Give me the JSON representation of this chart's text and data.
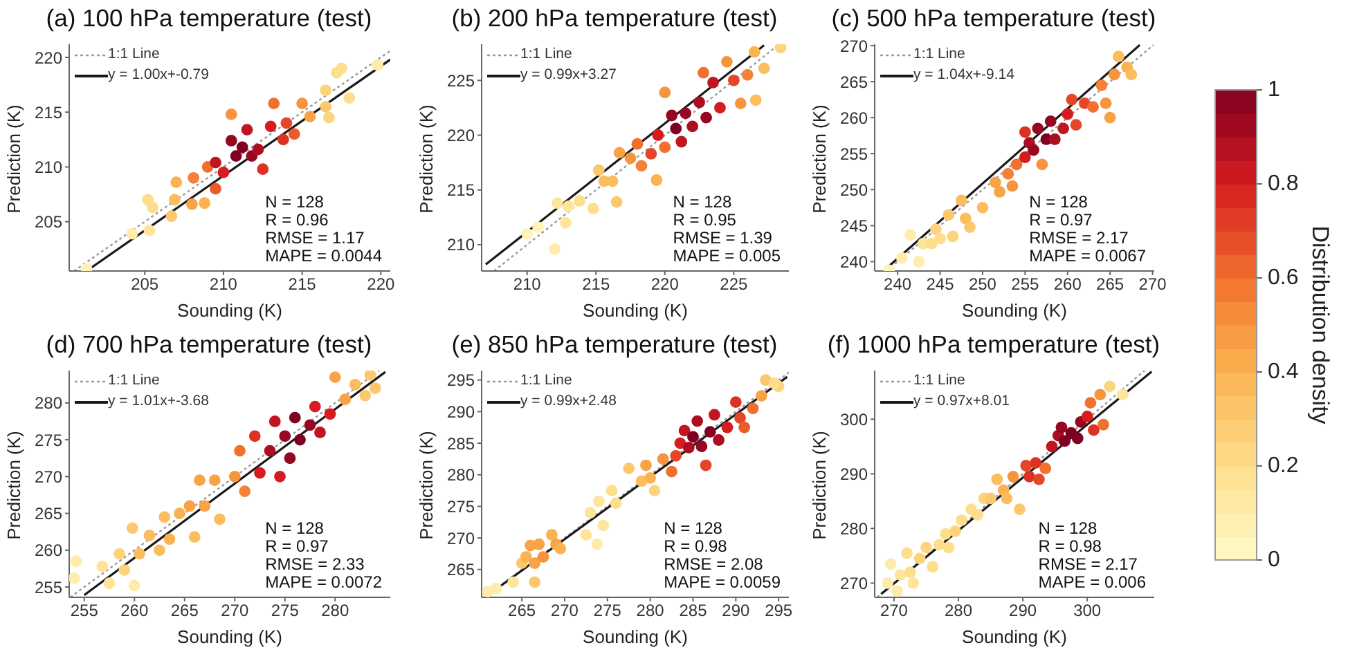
{
  "chart_data": [
    {
      "type": "scatter",
      "title": "(a) 100 hPa temperature (test)",
      "xlabel": "Sounding (K)",
      "ylabel": "Prediction (K)",
      "xlim": [
        200.2,
        220.6
      ],
      "ylim": [
        200.5,
        221.2
      ],
      "xticks": [
        205,
        210,
        215,
        220
      ],
      "yticks": [
        205,
        210,
        215,
        220
      ],
      "marker": "circle",
      "legend": "top left",
      "clabel": "Distribution density",
      "clim": [
        0,
        1
      ],
      "cticks": [
        0,
        0.2,
        0.4,
        0.6,
        0.8,
        1
      ],
      "annotations": [
        "N = 128",
        "R = 0.96",
        "RMSE = 1.17",
        "MAPE = 0.0044"
      ],
      "series": [
        {
          "x": [
            201.3,
            204.2,
            205.3,
            205.2,
            205.5,
            206.7,
            206.9,
            207.0,
            208.0,
            208.1,
            208.8,
            209.0,
            209.5,
            209.5,
            210.0,
            210.5,
            210.8,
            211.2,
            211.5,
            211.8,
            212.5,
            212.2,
            213.0,
            213.2,
            213.8,
            214.0,
            214.5,
            215.0,
            215.5,
            216.5,
            216.5,
            216.7,
            217.2,
            217.5,
            218.0,
            219.8,
            210.5
          ],
          "values": [
            200.7,
            203.9,
            204.2,
            207.0,
            206.3,
            205.5,
            207.0,
            208.6,
            206.6,
            209.0,
            206.7,
            210.0,
            208.0,
            210.4,
            209.5,
            212.4,
            211.0,
            211.8,
            213.4,
            211.0,
            209.8,
            211.6,
            213.7,
            215.8,
            212.5,
            214.0,
            213.0,
            215.8,
            214.6,
            215.5,
            217.0,
            214.5,
            218.6,
            219.0,
            216.3,
            219.3,
            214.8
          ],
          "colors": [
            "#fff3b9",
            "#feecaa",
            "#fee59b",
            "#fdde8c",
            "#fdde8c",
            "#fcc86e",
            "#fcbd5f",
            "#fbb250",
            "#f9a347",
            "#f58236",
            "#fbb250",
            "#f2702e",
            "#eb5b2b",
            "#c11521",
            "#d61c20",
            "#960722",
            "#800022",
            "#800022",
            "#c11521",
            "#960722",
            "#dd3124",
            "#ab0e21",
            "#d61c20",
            "#f2702e",
            "#dd3124",
            "#e44627",
            "#eb5b2b",
            "#f7943e",
            "#f9a347",
            "#fcc86e",
            "#fdd37d",
            "#fdd37d",
            "#fdde8c",
            "#fdde8c",
            "#fdde8c",
            "#feecaa",
            "#f7943e"
          ]
        },
        {
          "type": "line",
          "name": "1:1 Line",
          "color": "#9a9a9a",
          "line_style": "dotted",
          "marker": "none",
          "x": [
            200.5,
            220.6
          ],
          "values": [
            200.5,
            220.6
          ]
        },
        {
          "type": "line",
          "name": "y = 1.00x+-0.79",
          "color": "#1a1a1a",
          "line_style": "solid",
          "marker": "none",
          "x": [
            201.3,
            220.6
          ],
          "values": [
            200.5,
            219.8
          ]
        }
      ]
    },
    {
      "type": "scatter",
      "title": "(b) 200 hPa temperature (test)",
      "xlabel": "Sounding (K)",
      "ylabel": "Prediction (K)",
      "xlim": [
        206.7,
        229
      ],
      "ylim": [
        207.6,
        228.3
      ],
      "xticks": [
        210,
        215,
        220,
        225
      ],
      "yticks": [
        210,
        215,
        220,
        225
      ],
      "marker": "circle",
      "legend": "top left",
      "annotations": [
        "N = 128",
        "R = 0.95",
        "RMSE = 1.39",
        "MAPE = 0.005"
      ],
      "series": [
        {
          "x": [
            210,
            210.8,
            212,
            212.2,
            212.8,
            213,
            213.8,
            214.8,
            215.2,
            215.6,
            216.2,
            216.5,
            216.7,
            217.5,
            218,
            218.3,
            219,
            219.4,
            219.5,
            220,
            220,
            220.5,
            220.8,
            221.2,
            221.5,
            222,
            222.5,
            222.8,
            223,
            223.5,
            224,
            224.5,
            225,
            225.5,
            226,
            226.5,
            226.6,
            227.2,
            228.4
          ],
          "values": [
            211,
            211.6,
            209.6,
            213.8,
            212,
            213.5,
            214,
            213.3,
            216.8,
            215.8,
            215.8,
            213.9,
            218.4,
            217.9,
            219.2,
            217.2,
            218.3,
            215.9,
            220,
            223.9,
            218.9,
            221.8,
            220.6,
            219.4,
            222,
            220.8,
            223,
            225.7,
            221.6,
            224.8,
            222.5,
            226.7,
            225,
            222.9,
            225.5,
            227.6,
            223.2,
            226.1,
            228
          ],
          "colors": [
            "#fff3b9",
            "#fff3b9",
            "#feecaa",
            "#fee59b",
            "#fee59b",
            "#fee59b",
            "#fdde8c",
            "#fdde8c",
            "#fcc86e",
            "#fcbd5f",
            "#fcbd5f",
            "#fcc86e",
            "#f9a347",
            "#f7943e",
            "#f2702e",
            "#f58236",
            "#e44627",
            "#fbb250",
            "#d61c20",
            "#f7943e",
            "#f2702e",
            "#960722",
            "#800022",
            "#c11521",
            "#960722",
            "#ab0e21",
            "#ab0e21",
            "#f2702e",
            "#960722",
            "#c11521",
            "#d61c20",
            "#f7943e",
            "#e44627",
            "#f7943e",
            "#f58236",
            "#fbb250",
            "#fcbd5f",
            "#fcbd5f",
            "#fdd37d"
          ]
        },
        {
          "type": "line",
          "name": "1:1 Line",
          "color": "#9a9a9a",
          "line_style": "dotted",
          "marker": "none",
          "x": [
            207.6,
            228.3
          ],
          "values": [
            207.6,
            228.3
          ]
        },
        {
          "type": "line",
          "name": "y = 0.99x+3.27",
          "color": "#1a1a1a",
          "line_style": "solid",
          "marker": "none",
          "x": [
            207,
            227.2
          ],
          "values": [
            208.2,
            228.2
          ]
        }
      ]
    },
    {
      "type": "scatter",
      "title": "(c) 500 hPa temperature (test)",
      "xlabel": "Sounding (K)",
      "ylabel": "Prediction (K)",
      "xlim": [
        237.3,
        270.2
      ],
      "ylim": [
        238.7,
        270.2
      ],
      "xticks": [
        240,
        245,
        250,
        255,
        260,
        265,
        270
      ],
      "yticks": [
        240,
        245,
        250,
        255,
        260,
        265,
        270
      ],
      "marker": "circle",
      "legend": "top left",
      "annotations": [
        "N = 128",
        "R = 0.97",
        "RMSE = 2.17",
        "MAPE = 0.0067"
      ],
      "series": [
        {
          "x": [
            239,
            240.5,
            241.5,
            242.5,
            243,
            244,
            244.5,
            245,
            246,
            246.5,
            247.5,
            248,
            248.5,
            250,
            251.5,
            252,
            253.5,
            253,
            254,
            255,
            255,
            255.5,
            256,
            256.5,
            257,
            257.5,
            258,
            258.5,
            259.5,
            260,
            260.5,
            261,
            262,
            263,
            264,
            264.5,
            265,
            265.5,
            266,
            267,
            267.5
          ],
          "values": [
            238.8,
            240.5,
            243.7,
            240,
            242.5,
            242.5,
            244.5,
            243.2,
            246.5,
            243.5,
            248.5,
            246,
            244.8,
            247.5,
            251,
            249.7,
            250.5,
            252.2,
            253.5,
            254.5,
            258,
            256.5,
            255.5,
            258.5,
            253.5,
            257,
            259.5,
            257,
            258.5,
            260.5,
            262.5,
            259,
            262,
            261.5,
            264.5,
            262,
            260,
            266,
            268.5,
            267,
            266
          ],
          "colors": [
            "#fff3b9",
            "#feecaa",
            "#feecaa",
            "#feecaa",
            "#fee59b",
            "#fdde8c",
            "#fdd37d",
            "#fdde8c",
            "#fcc86e",
            "#fdd37d",
            "#fcbd5f",
            "#fcbd5f",
            "#fcc86e",
            "#fcbd5f",
            "#f9a347",
            "#f9a347",
            "#f7943e",
            "#f58236",
            "#f2702e",
            "#d61c20",
            "#dd3124",
            "#ab0e21",
            "#960722",
            "#960722",
            "#f7943e",
            "#800022",
            "#960722",
            "#ab0e21",
            "#c11521",
            "#d61c20",
            "#e44627",
            "#e44627",
            "#e44627",
            "#f2702e",
            "#f58236",
            "#f7943e",
            "#f9a347",
            "#f7943e",
            "#fcbd5f",
            "#fbb250",
            "#fcbd5f"
          ]
        },
        {
          "type": "line",
          "name": "1:1 Line",
          "color": "#9a9a9a",
          "line_style": "dotted",
          "marker": "none",
          "x": [
            238.7,
            270.1
          ],
          "values": [
            238.7,
            270.1
          ]
        },
        {
          "type": "line",
          "name": "y = 1.04x+-9.14",
          "color": "#1a1a1a",
          "line_style": "solid",
          "marker": "none",
          "x": [
            239,
            268.5
          ],
          "values": [
            239.4,
            270.1
          ]
        }
      ]
    },
    {
      "type": "scatter",
      "title": "(d) 700 hPa temperature (test)",
      "xlabel": "Sounding (K)",
      "ylabel": "Prediction (K)",
      "xlim": [
        253.5,
        285.5
      ],
      "ylim": [
        253.6,
        284.4
      ],
      "xticks": [
        255,
        260,
        265,
        270,
        275,
        280
      ],
      "yticks": [
        255,
        260,
        265,
        270,
        275,
        280
      ],
      "marker": "circle",
      "legend": "top left",
      "annotations": [
        "N = 128",
        "R = 0.97",
        "RMSE = 2.33",
        "MAPE = 0.0072"
      ],
      "series": [
        {
          "x": [
            254,
            254.2,
            256.8,
            257.5,
            258.5,
            259,
            259.8,
            260,
            260.5,
            261.5,
            262.5,
            263,
            263.5,
            264.5,
            265.5,
            266,
            266.5,
            267,
            268,
            268.5,
            270,
            270.5,
            271,
            272,
            272.5,
            273.5,
            274,
            274.5,
            275,
            275.5,
            276,
            276.5,
            277.5,
            278,
            278.5,
            279.5,
            280,
            281,
            282,
            283,
            284,
            283.5
          ],
          "values": [
            256.2,
            258.5,
            257.8,
            255.5,
            259.5,
            257.3,
            263,
            255.2,
            259.5,
            262,
            260,
            264.5,
            261.5,
            265,
            266,
            261.8,
            269.5,
            266,
            269.5,
            264.2,
            270,
            273.5,
            268,
            275.5,
            270.5,
            273.5,
            277.5,
            270,
            275.5,
            272.5,
            278,
            275,
            277,
            279.5,
            276,
            278.5,
            283.5,
            280.5,
            282.5,
            281,
            282,
            283.8
          ],
          "colors": [
            "#feecaa",
            "#feecaa",
            "#fee59b",
            "#fee59b",
            "#fdd37d",
            "#fdd37d",
            "#fcc86e",
            "#feecaa",
            "#fcbd5f",
            "#fcbd5f",
            "#fcbd5f",
            "#fcbd5f",
            "#fbb250",
            "#fbb250",
            "#f9a347",
            "#fcbd5f",
            "#f9a347",
            "#f9a347",
            "#f9a347",
            "#fcbd5f",
            "#f7943e",
            "#f2702e",
            "#f58236",
            "#dd3124",
            "#d61c20",
            "#ab0e21",
            "#c11521",
            "#d61c20",
            "#960722",
            "#960722",
            "#800022",
            "#800022",
            "#960722",
            "#d61c20",
            "#c11521",
            "#d61c20",
            "#f9a347",
            "#f9a347",
            "#fcbd5f",
            "#fcc86e",
            "#fcc86e",
            "#fcc86e"
          ]
        },
        {
          "type": "line",
          "name": "1:1 Line",
          "color": "#9a9a9a",
          "line_style": "dotted",
          "marker": "none",
          "x": [
            253.6,
            284.4
          ],
          "values": [
            253.6,
            284.4
          ]
        },
        {
          "type": "line",
          "name": "y = 1.01x+-3.68",
          "color": "#1a1a1a",
          "line_style": "solid",
          "marker": "none",
          "x": [
            255,
            285
          ],
          "values": [
            253.9,
            284.2
          ]
        }
      ]
    },
    {
      "type": "scatter",
      "title": "(e) 850 hPa temperature (test)",
      "xlabel": "Sounding (K)",
      "ylabel": "Prediction (K)",
      "xlim": [
        260.3,
        296.2
      ],
      "ylim": [
        260.6,
        296.5
      ],
      "xticks": [
        265,
        270,
        275,
        280,
        285,
        290,
        295
      ],
      "yticks": [
        265,
        270,
        275,
        280,
        285,
        290,
        295
      ],
      "marker": "circle",
      "legend": "top left",
      "annotations": [
        "N = 128",
        "R = 0.98",
        "RMSE = 2.08",
        "MAPE = 0.0059"
      ],
      "series": [
        {
          "x": [
            261,
            262,
            264,
            265,
            265.5,
            266,
            266.5,
            267,
            267.5,
            268.5,
            269,
            269.5,
            266.5,
            272.5,
            273,
            273.8,
            274,
            274.5,
            275.5,
            276,
            277.5,
            279,
            279.5,
            280,
            280.5,
            281.5,
            282.5,
            283,
            283.5,
            284,
            284.5,
            285,
            285.5,
            286,
            286.5,
            287,
            287.5,
            288,
            289,
            290,
            290.5,
            291,
            292,
            293,
            293.5,
            295,
            294.5
          ],
          "values": [
            261.5,
            262,
            263,
            266,
            267,
            268.8,
            266,
            269,
            267,
            270.5,
            269,
            268.3,
            263,
            270.5,
            274,
            269,
            275.8,
            272,
            277.5,
            275.5,
            281,
            279,
            281.5,
            279.5,
            277.5,
            282.5,
            280.5,
            283,
            285,
            287,
            284.3,
            286,
            288.5,
            284.5,
            281.5,
            286.8,
            289.5,
            285.5,
            287.5,
            291.5,
            289,
            287.5,
            290.5,
            292.5,
            295,
            294,
            294.5
          ],
          "colors": [
            "#feecaa",
            "#feecaa",
            "#fee59b",
            "#fcc86e",
            "#fbb250",
            "#f9a347",
            "#f9a347",
            "#f9a347",
            "#f7943e",
            "#fbb250",
            "#f9a347",
            "#fbb250",
            "#fcc86e",
            "#fee59b",
            "#fee59b",
            "#feecaa",
            "#fee59b",
            "#fee59b",
            "#fdde8c",
            "#fdde8c",
            "#fcc86e",
            "#fcbd5f",
            "#f9a347",
            "#fbb250",
            "#fdd37d",
            "#f7943e",
            "#f2702e",
            "#e44627",
            "#d61c20",
            "#c11521",
            "#ab0e21",
            "#800022",
            "#ab0e21",
            "#960722",
            "#e44627",
            "#800022",
            "#c11521",
            "#ab0e21",
            "#d61c20",
            "#dd3124",
            "#e44627",
            "#eb5b2b",
            "#f2702e",
            "#f9a347",
            "#fcc86e",
            "#fdd37d",
            "#fdde8c"
          ]
        },
        {
          "type": "line",
          "name": "1:1 Line",
          "color": "#9a9a9a",
          "line_style": "dotted",
          "marker": "none",
          "x": [
            260.6,
            296.2
          ],
          "values": [
            260.6,
            296.2
          ]
        },
        {
          "type": "line",
          "name": "y = 0.99x+2.48",
          "color": "#1a1a1a",
          "line_style": "solid",
          "marker": "none",
          "x": [
            261,
            296
          ],
          "values": [
            260.9,
            295.5
          ]
        }
      ]
    },
    {
      "type": "scatter",
      "title": "(f) 1000 hPa temperature (test)",
      "xlabel": "Sounding (K)",
      "ylabel": "Prediction (K)",
      "xlim": [
        267,
        310.4
      ],
      "ylim": [
        267.4,
        308.9
      ],
      "xticks": [
        270,
        280,
        290,
        300
      ],
      "yticks": [
        270,
        280,
        290,
        300
      ],
      "marker": "circle",
      "legend": "top left",
      "annotations": [
        "N = 128",
        "R = 0.98",
        "RMSE = 2.17",
        "MAPE = 0.006"
      ],
      "series": [
        {
          "x": [
            269,
            269.5,
            270.5,
            271,
            272,
            272.5,
            273,
            274,
            275,
            276,
            277,
            278,
            278.5,
            279.5,
            280.5,
            282,
            283,
            284,
            285,
            286,
            287,
            287.5,
            288.5,
            289.5,
            290.5,
            291,
            292,
            292.5,
            293.5,
            294.5,
            295.5,
            296,
            296.5,
            297.5,
            298.5,
            299,
            300,
            300.5,
            301,
            302,
            302.5,
            303.5,
            305.5
          ],
          "values": [
            270,
            273.5,
            268.5,
            271.5,
            275.5,
            272,
            270,
            274.5,
            276.5,
            273,
            277,
            279,
            276.5,
            279.5,
            281.5,
            283.5,
            282.5,
            285.5,
            285.5,
            289,
            287,
            285.5,
            289.5,
            283.5,
            291.5,
            289.5,
            292,
            289,
            291,
            295,
            297,
            298.5,
            296,
            297.5,
            296.5,
            299.5,
            300.5,
            303,
            298,
            304.5,
            299,
            306,
            304.5
          ],
          "colors": [
            "#feecaa",
            "#feecaa",
            "#feecaa",
            "#fee59b",
            "#fdde8c",
            "#fdde8c",
            "#fee59b",
            "#fdd37d",
            "#fdd37d",
            "#fdde8c",
            "#fdde8c",
            "#fdde8c",
            "#fdde8c",
            "#fdd37d",
            "#fdde8c",
            "#fdde8c",
            "#fdde8c",
            "#fdd37d",
            "#fcc86e",
            "#fcbd5f",
            "#fbb250",
            "#fcbd5f",
            "#f7943e",
            "#fcc86e",
            "#e44627",
            "#dd3124",
            "#dd3124",
            "#e44627",
            "#f2702e",
            "#c11521",
            "#ab0e21",
            "#960722",
            "#800022",
            "#800022",
            "#800022",
            "#960722",
            "#d61c20",
            "#f2702e",
            "#dd3124",
            "#f7943e",
            "#f2702e",
            "#fdd37d",
            "#fee59b"
          ]
        },
        {
          "type": "line",
          "name": "1:1 Line",
          "color": "#9a9a9a",
          "line_style": "dotted",
          "marker": "none",
          "x": [
            267.4,
            308.9
          ],
          "values": [
            267.4,
            308.9
          ]
        },
        {
          "type": "line",
          "name": "y = 0.97x+8.01",
          "color": "#1a1a1a",
          "line_style": "solid",
          "marker": "none",
          "x": [
            268,
            310
          ],
          "values": [
            268.0,
            308.7
          ]
        }
      ]
    }
  ]
}
